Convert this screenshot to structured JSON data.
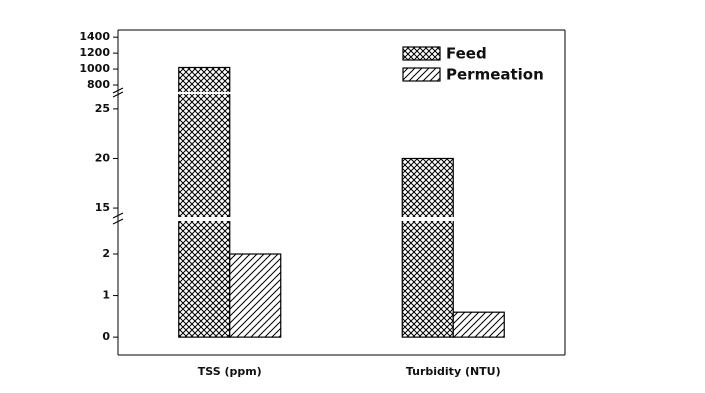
{
  "chart_data": {
    "type": "bar",
    "categories": [
      "TSS (ppm)",
      "Turbidity (NTU)"
    ],
    "series": [
      {
        "name": "Feed",
        "color": "#000000",
        "pattern": "crosshatch",
        "values": [
          1020,
          20
        ]
      },
      {
        "name": "Permeation",
        "color": "#000000",
        "pattern": "diagonal",
        "values": [
          2,
          0.6
        ]
      }
    ],
    "y_segments": [
      {
        "ylim": [
          -0.43,
          2.77
        ],
        "yticks": [
          0,
          1,
          2
        ]
      },
      {
        "ylim": [
          14.2,
          26.4
        ],
        "yticks": [
          15,
          20,
          25
        ]
      },
      {
        "ylim": [
          725,
          1490
        ],
        "yticks": [
          800,
          1000,
          1200,
          1400
        ]
      }
    ],
    "legend": "upper-right"
  }
}
